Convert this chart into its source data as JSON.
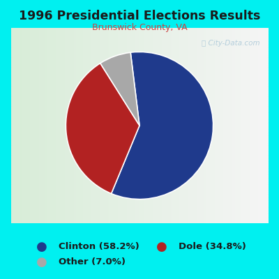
{
  "title": "1996 Presidential Elections Results",
  "subtitle": "Brunswick County, VA",
  "slices": [
    58.2,
    34.8,
    7.0
  ],
  "labels": [
    "Clinton (58.2%)",
    "Dole (34.8%)",
    "Other (7.0%)"
  ],
  "colors": [
    "#1f3a8c",
    "#b22222",
    "#a8a8a8"
  ],
  "bg_outer": "#00f0f0",
  "bg_inner_left": "#d8edd8",
  "bg_inner_right": "#f5f5f5",
  "title_color": "#1a1a1a",
  "subtitle_color": "#cc4444",
  "watermark_color": "#aac8d8",
  "startangle": 97,
  "legend_text_color": "#1a1a1a"
}
